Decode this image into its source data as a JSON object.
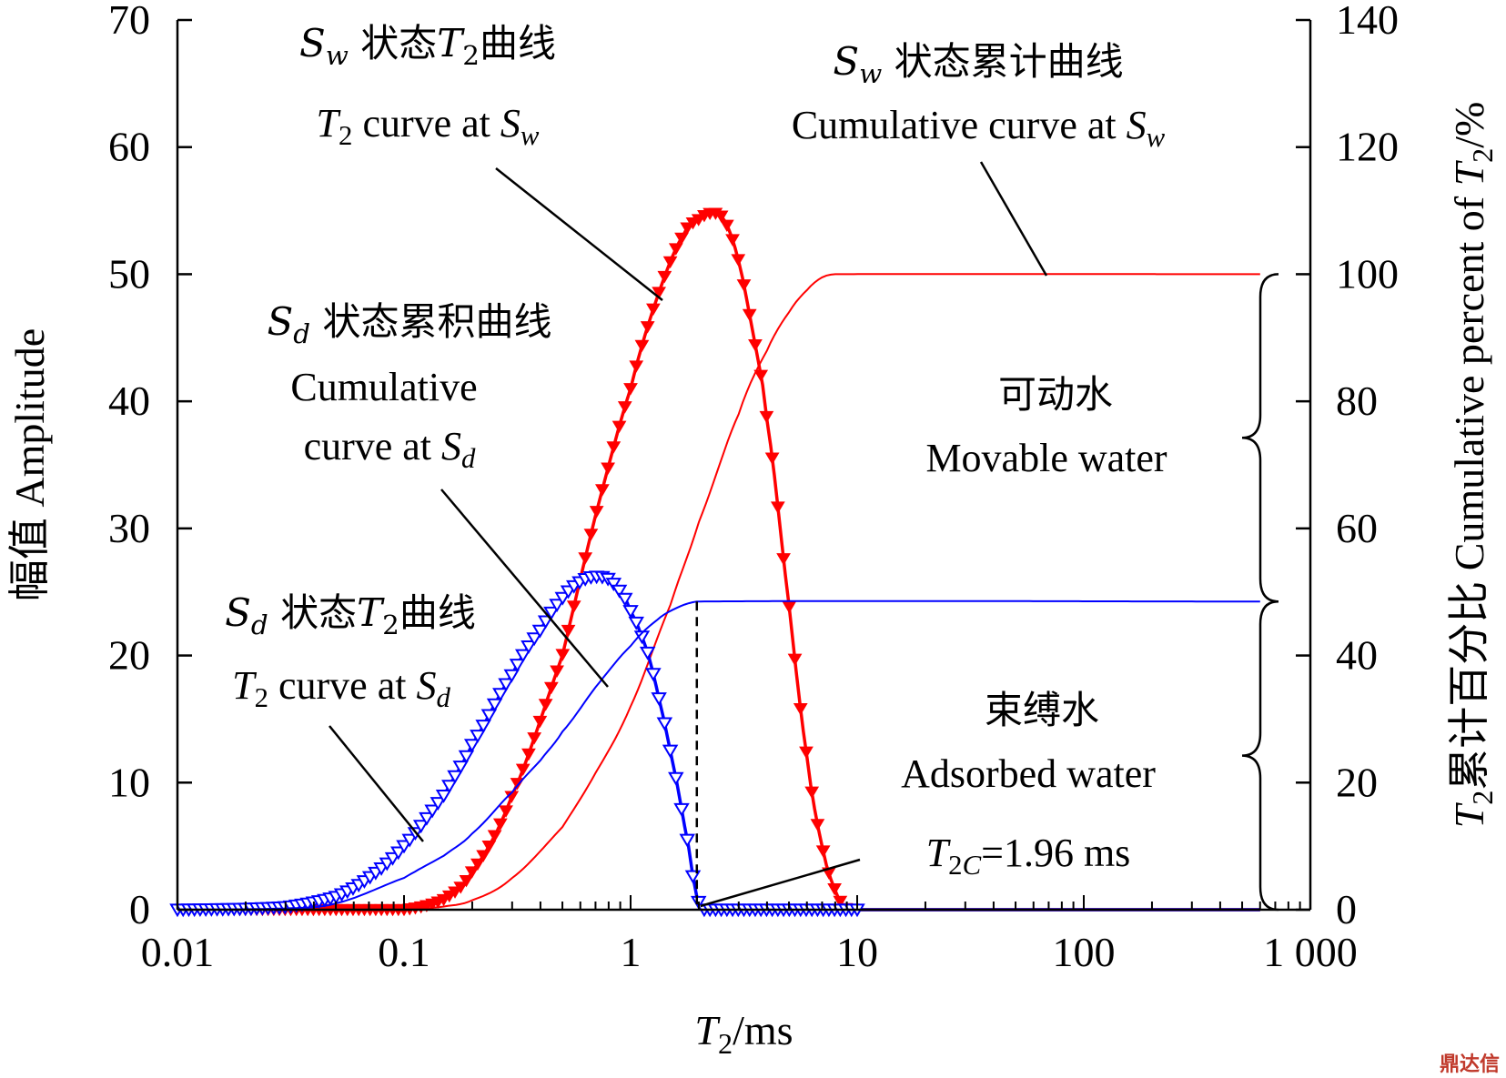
{
  "chart_data": {
    "type": "line",
    "x_scale": "log",
    "xlim": [
      0.01,
      1000
    ],
    "ylim_left": [
      0,
      70
    ],
    "ylim_right": [
      0,
      140
    ],
    "xticks": [
      0.01,
      0.1,
      1,
      10,
      100,
      1000
    ],
    "xtick_labels": [
      "0.01",
      "0.1",
      "1",
      "10",
      "100",
      "1 000"
    ],
    "yticks_left": [
      0,
      10,
      20,
      30,
      40,
      50,
      60,
      70
    ],
    "ytick_labels_left": [
      "0",
      "10",
      "20",
      "30",
      "40",
      "50",
      "60",
      "70"
    ],
    "yticks_right": [
      0,
      20,
      40,
      60,
      80,
      100,
      120,
      140
    ],
    "ytick_labels_right": [
      "0",
      "20",
      "40",
      "60",
      "80",
      "100",
      "120",
      "140"
    ],
    "xlabel": "T2/ms",
    "ylabel_left": "幅值 Amplitude",
    "ylabel_right": "T2累计百分比 Cumulative percent of T2/%",
    "grid": false,
    "cutoff": {
      "x": 1.96,
      "label": "T2C=1.96 ms"
    },
    "series": [
      {
        "name": "Sw 状态T2曲线 / T2 curve at Sw",
        "axis": "left",
        "color": "#ff0000",
        "marker": "filled-triangle-down",
        "x": [
          0.01,
          0.1,
          0.15,
          0.2,
          0.3,
          0.5,
          0.7,
          1.0,
          1.3,
          1.7,
          2.0,
          2.3,
          2.6,
          3.0,
          3.5,
          4.0,
          5.0,
          6.0,
          7.0,
          8.0,
          9.0,
          10,
          100,
          600
        ],
        "y": [
          0,
          0,
          0.8,
          3,
          9,
          20,
          31,
          41,
          48,
          53,
          54.3,
          54.8,
          54.2,
          51,
          45,
          38.5,
          24,
          12,
          5,
          1.5,
          0,
          0,
          0,
          0
        ]
      },
      {
        "name": "Sw 状态累计曲线 / Cumulative curve at Sw",
        "axis": "right",
        "color": "#ff0000",
        "x": [
          0.01,
          0.1,
          0.15,
          0.2,
          0.3,
          0.5,
          0.7,
          1.0,
          1.5,
          2.0,
          3.0,
          4.0,
          5.0,
          6.0,
          7.0,
          8.0,
          600
        ],
        "y": [
          0,
          0,
          0.5,
          1.5,
          5,
          13,
          21.5,
          32,
          48,
          61,
          78,
          88,
          94,
          97.5,
          99.5,
          100,
          100
        ]
      },
      {
        "name": "Sd 状态T2曲线 / T2 curve at Sd",
        "axis": "left",
        "color": "#0000ff",
        "marker": "open-triangle-down",
        "x": [
          0.01,
          0.03,
          0.05,
          0.07,
          0.1,
          0.15,
          0.2,
          0.3,
          0.4,
          0.5,
          0.6,
          0.7,
          0.8,
          0.9,
          1.0,
          1.2,
          1.4,
          1.6,
          1.8,
          1.96,
          2.1,
          10,
          600
        ],
        "y": [
          0,
          0.2,
          1,
          2.5,
          5,
          9,
          13,
          18.5,
          22,
          24.5,
          25.8,
          26.2,
          26,
          25,
          23.5,
          20,
          15,
          10,
          5,
          1,
          0,
          0,
          0
        ]
      },
      {
        "name": "Sd 状态累积曲线 / Cumulative curve at Sd",
        "axis": "right",
        "color": "#0000ff",
        "x": [
          0.01,
          0.03,
          0.05,
          0.1,
          0.15,
          0.2,
          0.3,
          0.4,
          0.5,
          0.7,
          1.0,
          1.3,
          1.6,
          1.96,
          600
        ],
        "y": [
          0,
          0.2,
          1,
          5,
          8.5,
          12,
          18.5,
          23.5,
          28,
          35,
          41.5,
          45.5,
          47.5,
          48.5,
          48.5
        ]
      }
    ]
  },
  "annotations": {
    "sw_t2_zh": "Sw 状态T2曲线",
    "sw_t2_en": "T2 curve at Sw",
    "sw_cum_zh": "Sw 状态累计曲线",
    "sw_cum_en": "Cumulative curve at Sw",
    "sd_cum_zh": "Sd 状态累积曲线",
    "sd_cum_en1": "Cumulative",
    "sd_cum_en2": "curve at Sd",
    "sd_t2_zh": "Sd 状态T2曲线",
    "sd_t2_en": "T2 curve at Sd",
    "movable_zh": "可动水",
    "movable_en": "Movable water",
    "adsorbed_zh": "束缚水",
    "adsorbed_en": "Adsorbed water",
    "cutoff_label": "T2C=1.96 ms"
  },
  "watermark": "鼎达信"
}
